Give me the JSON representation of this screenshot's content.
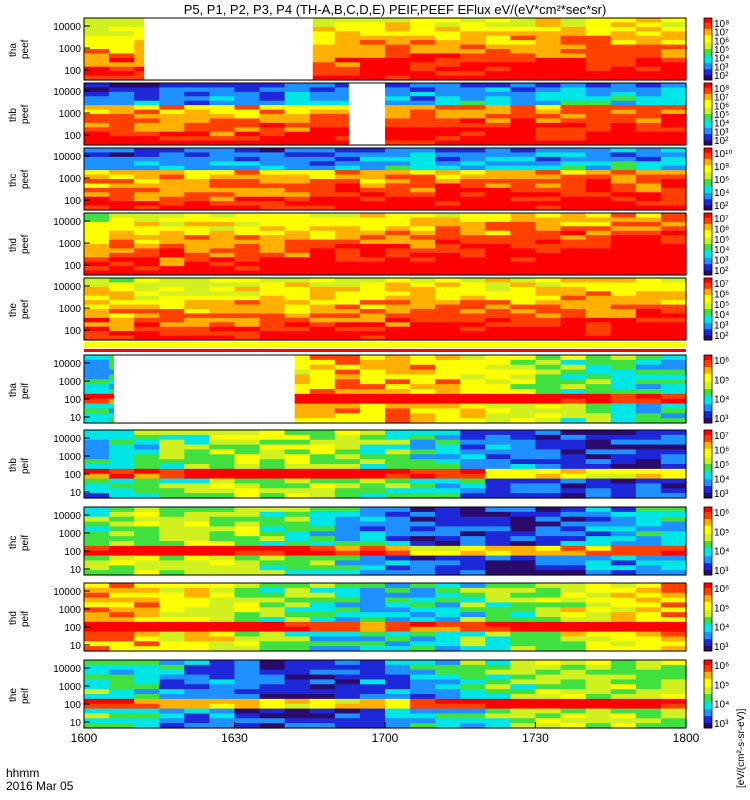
{
  "chart_data": {
    "type": "heatmap",
    "title": "P5, P1, P2, P3, P4 (TH-A,B,C,D,E) PEIF,PEEF EFlux eV/(eV*cm²*sec*sr)",
    "x_ticks": [
      "1600",
      "1630",
      "1700",
      "1730",
      "1800"
    ],
    "x_title": [
      "hhmm",
      "2016 Mar 05"
    ],
    "colorbar_unit": "[eV/(cm²-s-sr-eV)]",
    "panels": [
      {
        "label_top": "tha",
        "label_bottom": "peef",
        "y_ticks": [
          "10000",
          "1000",
          "100"
        ],
        "cbar_ticks": [
          "10⁸",
          "10⁷",
          "10⁶",
          "10⁵",
          "10⁴",
          "10³",
          "10²"
        ],
        "gap": [
          0.1,
          0.38
        ]
      },
      {
        "label_top": "thb",
        "label_bottom": "peef",
        "y_ticks": [
          "10000",
          "1000",
          "100"
        ],
        "cbar_ticks": [
          "10⁸",
          "10⁷",
          "10⁶",
          "10⁵",
          "10⁴",
          "10³",
          "10²"
        ],
        "gap": [
          0.44,
          0.5
        ]
      },
      {
        "label_top": "thc",
        "label_bottom": "peef",
        "y_ticks": [
          "10000",
          "1000",
          "100"
        ],
        "cbar_ticks": [
          "10¹⁰",
          "10⁸",
          "10⁶",
          "10⁴",
          "10²"
        ],
        "gap": null
      },
      {
        "label_top": "thd",
        "label_bottom": "peef",
        "y_ticks": [
          "10000",
          "1000",
          "100"
        ],
        "cbar_ticks": [
          "10⁷",
          "10⁶",
          "10⁵",
          "10⁴",
          "10³",
          "10²"
        ],
        "gap": null
      },
      {
        "label_top": "the",
        "label_bottom": "peef",
        "y_ticks": [
          "10000",
          "1000",
          "100"
        ],
        "cbar_ticks": [
          "10⁷",
          "10⁶",
          "10⁵",
          "10⁴",
          "10³",
          "10²"
        ],
        "gap": null
      },
      {
        "label_top": "tha",
        "label_bottom": "peif",
        "y_ticks": [
          "10000",
          "1000",
          "100",
          "10"
        ],
        "cbar_ticks": [
          "10⁶",
          "10⁵",
          "10⁴",
          "10³"
        ],
        "gap": [
          0.05,
          0.35
        ]
      },
      {
        "label_top": "thb",
        "label_bottom": "peif",
        "y_ticks": [
          "10000",
          "1000",
          "100",
          "10"
        ],
        "cbar_ticks": [
          "10⁷",
          "10⁶",
          "10⁵",
          "10⁴",
          "10³"
        ],
        "gap": null
      },
      {
        "label_top": "thc",
        "label_bottom": "peif",
        "y_ticks": [
          "10000",
          "1000",
          "100",
          "10"
        ],
        "cbar_ticks": [
          "10⁶",
          "10⁵",
          "10⁴",
          "10³"
        ],
        "gap": null
      },
      {
        "label_top": "thd",
        "label_bottom": "peif",
        "y_ticks": [
          "10000",
          "1000",
          "100",
          "10"
        ],
        "cbar_ticks": [
          "10⁶",
          "10⁵",
          "10⁴",
          "10³"
        ],
        "gap": null
      },
      {
        "label_top": "the",
        "label_bottom": "peif",
        "y_ticks": [
          "10000",
          "1000",
          "100",
          "10"
        ],
        "cbar_ticks": [
          "10⁶",
          "10⁵",
          "10⁴",
          "10³"
        ],
        "gap": null
      }
    ],
    "colormap": [
      "#2a0a6a",
      "#1e28d8",
      "#1e90ff",
      "#00e5e5",
      "#40e040",
      "#d0f020",
      "#ffff00",
      "#ffb000",
      "#ff4000",
      "#ff0000"
    ]
  }
}
